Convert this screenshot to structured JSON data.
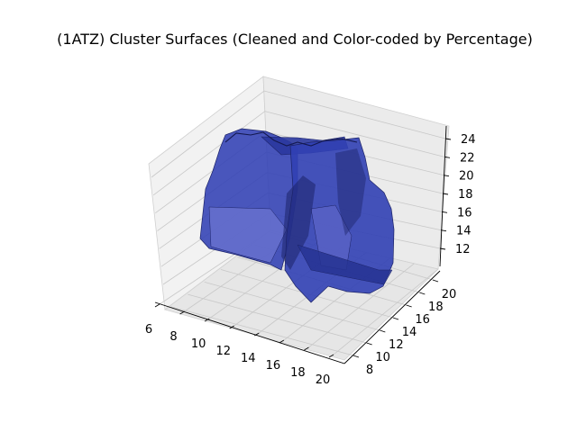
{
  "chart_data": {
    "type": "surface-3d",
    "title": "(1ATZ) Cluster Surfaces (Cleaned and Color-coded by Percentage)",
    "xlabel": "",
    "ylabel": "",
    "zlabel": "",
    "x_ticks": [
      "6",
      "8",
      "10",
      "12",
      "14",
      "16",
      "18",
      "20"
    ],
    "y_ticks": [
      "8",
      "10",
      "12",
      "14",
      "16",
      "18",
      "20"
    ],
    "z_ticks": [
      "12",
      "14",
      "16",
      "18",
      "20",
      "22",
      "24"
    ],
    "grid": true,
    "pane_color": "#f2f2f2",
    "surface_color": "#3140b4",
    "surface_dark_color": "#1c2368",
    "surface_light_color": "#6b74d0"
  }
}
